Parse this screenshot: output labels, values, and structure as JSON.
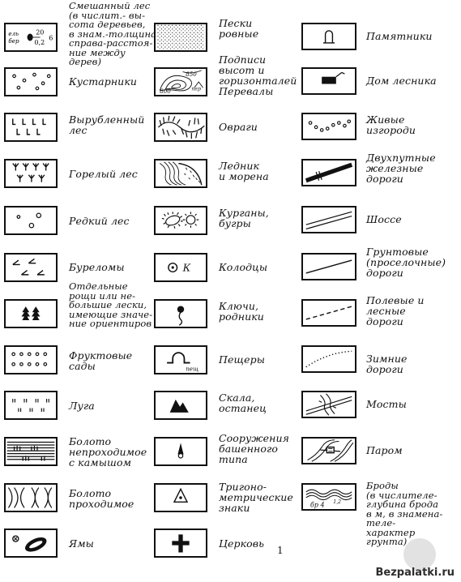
{
  "columns": [
    {
      "items": [
        {
          "id": "mixed-forest",
          "label": "Смешанный лес\n(в числит.- вы-\nсота деревьев,\nв знам.-толщина,\nсправа-расстоя-\nние между дерев)",
          "symbol_text": {
            "left1": "ель",
            "left2": "бер",
            "num": "20",
            "den": "0,2",
            "right": "6"
          }
        },
        {
          "id": "shrubs",
          "label": "Кустарники"
        },
        {
          "id": "cut-forest",
          "label": "Вырубленный\nлес"
        },
        {
          "id": "burnt-forest",
          "label": "Горелый лес"
        },
        {
          "id": "sparse-forest",
          "label": "Редкий лес"
        },
        {
          "id": "windfall",
          "label": "Буреломы"
        },
        {
          "id": "groves",
          "label": "Отдельные\nрощи или не-\nбольшие лески,\nимеющие значе-\nние ориентиров"
        },
        {
          "id": "orchards",
          "label": "Фруктовые\nсады"
        },
        {
          "id": "meadows",
          "label": "Луга"
        },
        {
          "id": "impassable-swamp",
          "label": "Болото\nнепроходимое\nс камышом"
        },
        {
          "id": "passable-swamp",
          "label": "Болото\nпроходимое"
        },
        {
          "id": "pits",
          "label": "Ямы"
        }
      ]
    },
    {
      "items": [
        {
          "id": "flat-sand",
          "label": "Пески\nровные"
        },
        {
          "id": "contours",
          "label": "Подписи\nвысот и\nгоризонталей\nПеревалы",
          "symbol_text": {
            "h1": "850",
            "h2": "800",
            "pass": "пер"
          }
        },
        {
          "id": "ravines",
          "label": "Овраги"
        },
        {
          "id": "glacier",
          "label": "Ледник\nи морена"
        },
        {
          "id": "mounds",
          "label": "Курганы,\nбугры"
        },
        {
          "id": "wells",
          "label": "Колодцы",
          "symbol_text": {
            "k": "К"
          }
        },
        {
          "id": "springs",
          "label": "Ключи,\nродники"
        },
        {
          "id": "caves",
          "label": "Пещеры",
          "symbol_text": {
            "cave": "пещ"
          }
        },
        {
          "id": "rock",
          "label": "Скала,\nостанец"
        },
        {
          "id": "towers",
          "label": "Сооружения\nбашенного\nтипа"
        },
        {
          "id": "trig",
          "label": "Тригоно-\nметрические\nзнаки"
        },
        {
          "id": "church",
          "label": "Церковь"
        }
      ]
    },
    {
      "items": [
        {
          "id": "monuments",
          "label": "Памятники"
        },
        {
          "id": "forester-house",
          "label": "Дом лесника"
        },
        {
          "id": "hedges",
          "label": "Живые\nизгороди"
        },
        {
          "id": "railways",
          "label": "Двухпутные\nжелезные\nдороги"
        },
        {
          "id": "highway",
          "label": "Шоссе"
        },
        {
          "id": "dirt-roads",
          "label": "Грунтовые\n(проселочные)\nдороги"
        },
        {
          "id": "field-roads",
          "label": "Полевые и\nлесные\nдороги"
        },
        {
          "id": "winter-roads",
          "label": "Зимние дороги"
        },
        {
          "id": "bridges",
          "label": "Мосты"
        },
        {
          "id": "ferry",
          "label": "Паром"
        },
        {
          "id": "fords",
          "label": "Броды\n(в числителе-\nглубина брода\nв м, в знамена-\nтеле- характер\nгрунта)",
          "symbol_text": {
            "ford": "бр 4",
            "depth": "1,2"
          }
        }
      ]
    }
  ],
  "page_number": "1",
  "watermark": "Bezpalatki.ru"
}
